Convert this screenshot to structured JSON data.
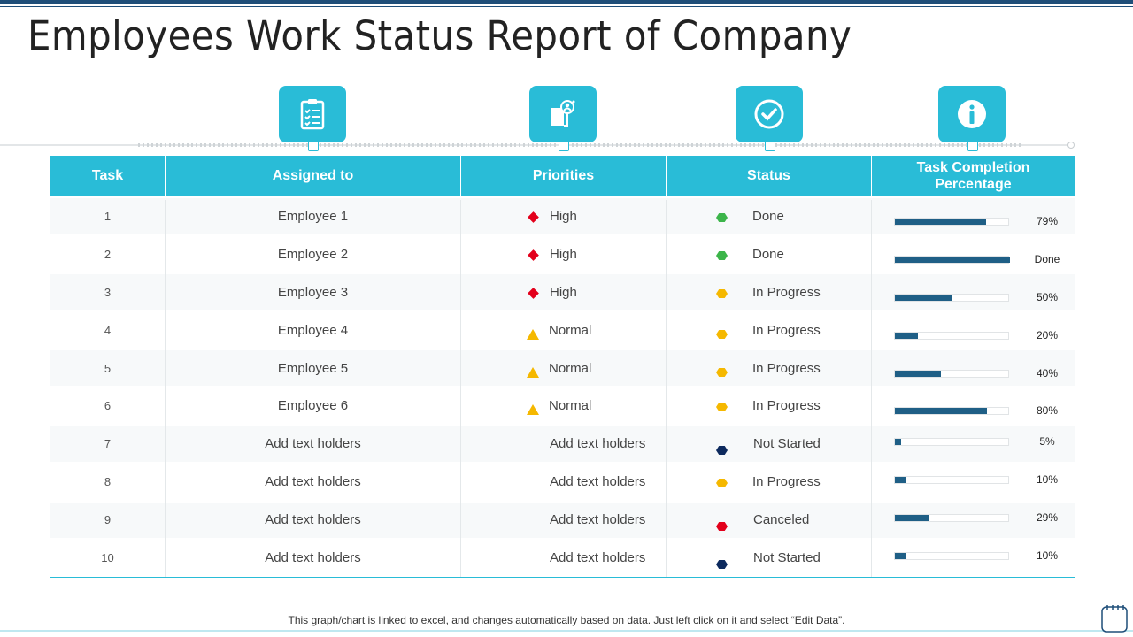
{
  "title": "Employees Work Status Report of Company",
  "colors": {
    "accent": "#29bcd7",
    "dark": "#1f4e79",
    "bar": "#1f5f86",
    "high": "#e3001b",
    "normal": "#f5b800",
    "done": "#3cb54a",
    "progress": "#f5b800",
    "not_started": "#0d2a5e",
    "canceled": "#e3001b"
  },
  "icons": [
    "clipboard-checklist-icon",
    "document-user-icon",
    "check-circle-icon",
    "info-icon"
  ],
  "columns": [
    "Task",
    "Assigned to",
    "Priorities",
    "Status",
    "Task Completion Percentage"
  ],
  "rows": [
    {
      "task": "1",
      "assigned": "Employee 1",
      "priority": "High",
      "priority_shape": "diamond",
      "status": "Done",
      "status_color": "#3cb54a",
      "progress": 0.79,
      "pct_label": "79%"
    },
    {
      "task": "2",
      "assigned": "Employee 2",
      "priority": "High",
      "priority_shape": "diamond",
      "status": "Done",
      "status_color": "#3cb54a",
      "progress": 1.0,
      "pct_label": "Done"
    },
    {
      "task": "3",
      "assigned": "Employee 3",
      "priority": "High",
      "priority_shape": "diamond",
      "status": "In Progress",
      "status_color": "#f5b800",
      "progress": 0.5,
      "pct_label": "50%"
    },
    {
      "task": "4",
      "assigned": "Employee 4",
      "priority": "Normal",
      "priority_shape": "triangle",
      "status": "In Progress",
      "status_color": "#f5b800",
      "progress": 0.2,
      "pct_label": "20%"
    },
    {
      "task": "5",
      "assigned": "Employee 5",
      "priority": "Normal",
      "priority_shape": "triangle",
      "status": "In Progress",
      "status_color": "#f5b800",
      "progress": 0.4,
      "pct_label": "40%"
    },
    {
      "task": "6",
      "assigned": "Employee 6",
      "priority": "Normal",
      "priority_shape": "triangle",
      "status": "In Progress",
      "status_color": "#f5b800",
      "progress": 0.8,
      "pct_label": "80%"
    },
    {
      "task": "7",
      "assigned": "Add text holders",
      "priority": "Add text holders",
      "priority_shape": "none",
      "status": "Not Started",
      "status_color": "#0d2a5e",
      "progress": 0.05,
      "pct_label": "5%"
    },
    {
      "task": "8",
      "assigned": "Add text holders",
      "priority": "Add text holders",
      "priority_shape": "none",
      "status": "In Progress",
      "status_color": "#f5b800",
      "progress": 0.1,
      "pct_label": "10%"
    },
    {
      "task": "9",
      "assigned": "Add text holders",
      "priority": "Add text holders",
      "priority_shape": "none",
      "status": "Canceled",
      "status_color": "#e3001b",
      "progress": 0.29,
      "pct_label": "29%"
    },
    {
      "task": "10",
      "assigned": "Add text holders",
      "priority": "Add text holders",
      "priority_shape": "none",
      "status": "Not Started",
      "status_color": "#0d2a5e",
      "progress": 0.1,
      "pct_label": "10%"
    }
  ],
  "footnote": "This graph/chart is linked to excel, and changes automatically based on data. Just left click on it and select “Edit Data”."
}
